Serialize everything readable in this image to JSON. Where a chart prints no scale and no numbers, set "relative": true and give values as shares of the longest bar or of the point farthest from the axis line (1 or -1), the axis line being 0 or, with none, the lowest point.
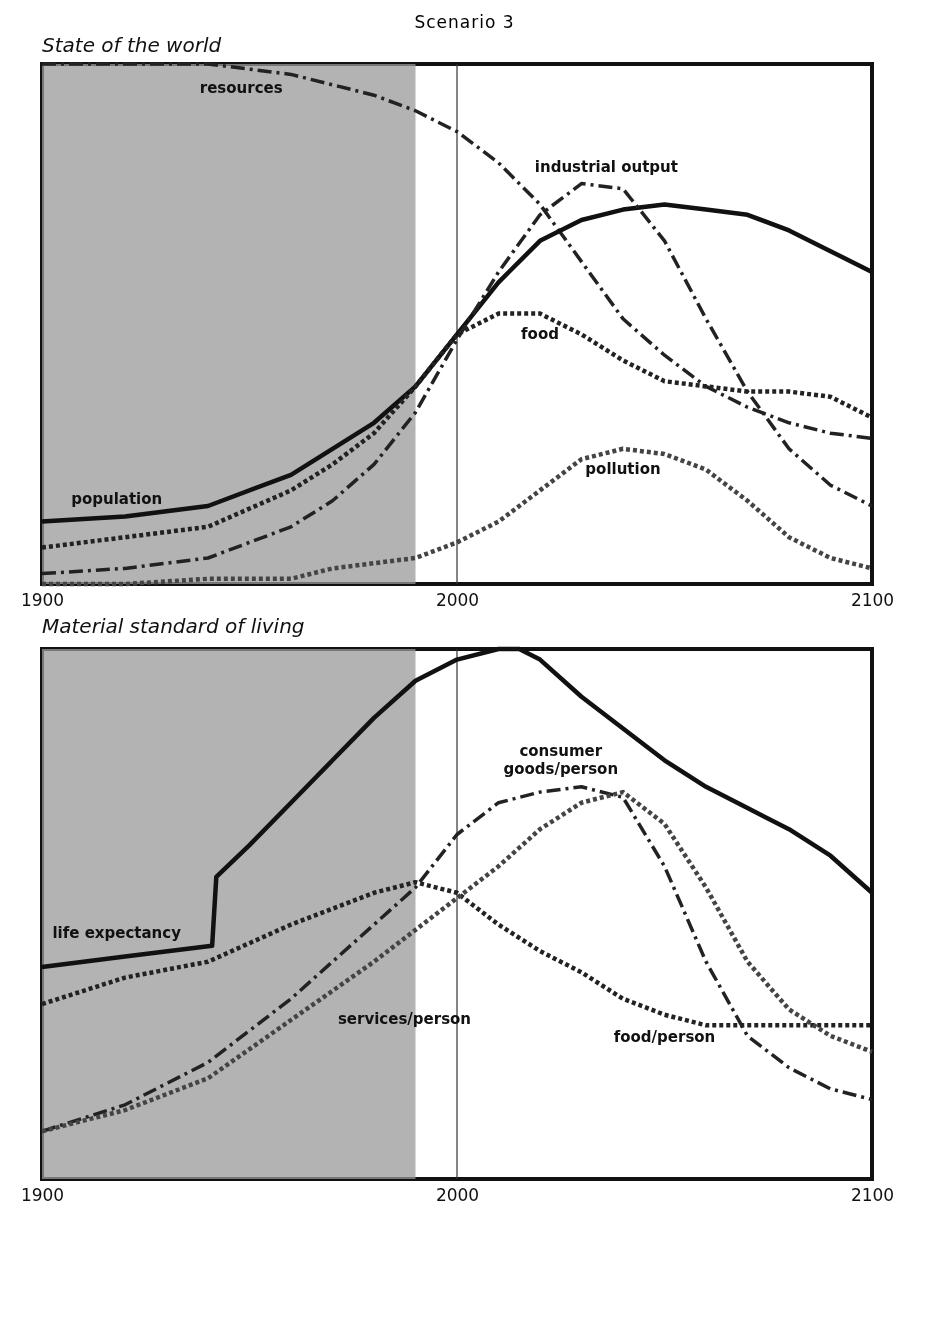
{
  "chart_data": [
    {
      "type": "line",
      "title": "Scenario 3",
      "subtitle": "State of the world",
      "relative": true,
      "x": [
        1900,
        1920,
        1940,
        1960,
        1970,
        1980,
        1990,
        2000,
        2010,
        2020,
        2030,
        2040,
        2050,
        2060,
        2070,
        2080,
        2090,
        2100
      ],
      "xlim": [
        1900,
        2100
      ],
      "xticks": [
        1900,
        2000,
        2100
      ],
      "grid": false,
      "tick_labels": "x",
      "series": [
        {
          "name": "resources",
          "color": "#222222",
          "line_style": "dashed",
          "values": [
            1.0,
            1.0,
            1.0,
            0.98,
            0.96,
            0.94,
            0.91,
            0.87,
            0.81,
            0.73,
            0.62,
            0.51,
            0.44,
            0.38,
            0.34,
            0.31,
            0.29,
            0.28
          ]
        },
        {
          "name": "population",
          "color": "#111111",
          "line_style": "solid",
          "values": [
            0.12,
            0.13,
            0.15,
            0.21,
            0.26,
            0.31,
            0.38,
            0.48,
            0.58,
            0.66,
            0.7,
            0.72,
            0.73,
            0.72,
            0.71,
            0.68,
            0.64,
            0.6
          ]
        },
        {
          "name": "food",
          "color": "#222222",
          "line_style": "dotted",
          "values": [
            0.07,
            0.09,
            0.11,
            0.18,
            0.23,
            0.29,
            0.38,
            0.48,
            0.52,
            0.52,
            0.48,
            0.43,
            0.39,
            0.38,
            0.37,
            0.37,
            0.36,
            0.32
          ]
        },
        {
          "name": "industrial output",
          "color": "#222222",
          "line_style": "dashed",
          "values": [
            0.02,
            0.03,
            0.05,
            0.11,
            0.16,
            0.23,
            0.33,
            0.47,
            0.6,
            0.71,
            0.77,
            0.76,
            0.66,
            0.51,
            0.37,
            0.26,
            0.19,
            0.15
          ]
        },
        {
          "name": "pollution",
          "color": "#444444",
          "line_style": "dotted",
          "values": [
            0.0,
            0.0,
            0.01,
            0.01,
            0.03,
            0.04,
            0.05,
            0.08,
            0.12,
            0.18,
            0.24,
            0.26,
            0.25,
            0.22,
            0.16,
            0.09,
            0.05,
            0.03
          ]
        }
      ],
      "bands": [
        {
          "axis": "x",
          "from": 1900,
          "to": 1990,
          "color": "#9a9a9a"
        }
      ],
      "ref_lines": [
        {
          "axis": "x",
          "value": 2000,
          "color": "#333333",
          "line_style": "solid"
        }
      ]
    },
    {
      "type": "line",
      "title": "Material standard of living",
      "relative": true,
      "xlim": [
        1900,
        2100
      ],
      "xticks": [
        1900,
        2000,
        2100
      ],
      "grid": false,
      "tick_labels": "x",
      "series": [
        {
          "name": "life expectancy",
          "color": "#111111",
          "line_style": "solid",
          "x": [
            1900,
            1920,
            1941,
            1942,
            1950,
            1960,
            1970,
            1980,
            1990,
            2000,
            2010,
            2015,
            2020,
            2030,
            2040,
            2050,
            2060,
            2070,
            2080,
            2090,
            2100
          ],
          "values": [
            0.4,
            0.42,
            0.44,
            0.57,
            0.63,
            0.71,
            0.79,
            0.87,
            0.94,
            0.98,
            1.0,
            1.0,
            0.98,
            0.91,
            0.85,
            0.79,
            0.74,
            0.7,
            0.66,
            0.61,
            0.54
          ]
        },
        {
          "name": "food/person",
          "color": "#222222",
          "line_style": "dotted",
          "x": [
            1900,
            1920,
            1940,
            1960,
            1980,
            1990,
            2000,
            2010,
            2020,
            2030,
            2040,
            2050,
            2060,
            2070,
            2080,
            2090,
            2100
          ],
          "values": [
            0.33,
            0.38,
            0.41,
            0.48,
            0.54,
            0.56,
            0.54,
            0.48,
            0.43,
            0.39,
            0.34,
            0.31,
            0.29,
            0.29,
            0.29,
            0.29,
            0.29
          ]
        },
        {
          "name": "consumer goods/person",
          "color": "#222222",
          "line_style": "dashed",
          "x": [
            1900,
            1920,
            1940,
            1960,
            1980,
            1990,
            2000,
            2010,
            2020,
            2030,
            2040,
            2050,
            2060,
            2070,
            2080,
            2090,
            2100
          ],
          "values": [
            0.09,
            0.14,
            0.22,
            0.34,
            0.48,
            0.55,
            0.65,
            0.71,
            0.73,
            0.74,
            0.72,
            0.59,
            0.41,
            0.27,
            0.21,
            0.17,
            0.15
          ]
        },
        {
          "name": "services/person",
          "color": "#444444",
          "line_style": "dotted",
          "x": [
            1900,
            1920,
            1940,
            1960,
            1980,
            2000,
            2010,
            2020,
            2030,
            2040,
            2050,
            2060,
            2070,
            2080,
            2090,
            2100
          ],
          "values": [
            0.09,
            0.13,
            0.19,
            0.3,
            0.41,
            0.53,
            0.59,
            0.66,
            0.71,
            0.73,
            0.67,
            0.55,
            0.41,
            0.32,
            0.27,
            0.24
          ]
        }
      ],
      "bands": [
        {
          "axis": "x",
          "from": 1900,
          "to": 1990,
          "color": "#9a9a9a"
        }
      ],
      "ref_lines": [
        {
          "axis": "x",
          "value": 2000,
          "color": "#333333",
          "line_style": "solid"
        }
      ]
    }
  ]
}
